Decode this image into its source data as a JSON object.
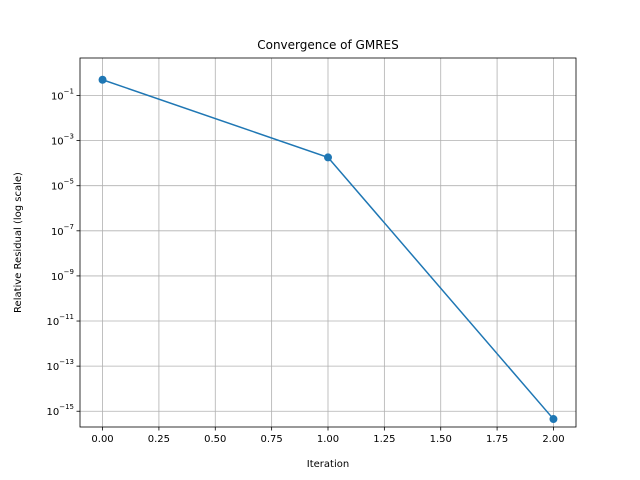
{
  "chart_data": {
    "type": "line",
    "title": "Convergence of GMRES",
    "xlabel": "Iteration",
    "ylabel": "Relative Residual (log scale)",
    "yscale": "log",
    "grid": true,
    "x": [
      0,
      1,
      2
    ],
    "series": [
      {
        "values": [
          0.5,
          0.00018,
          4.5e-16
        ],
        "color": "#1f77b4",
        "marker": "circle"
      }
    ],
    "xlim": [
      -0.1,
      2.1
    ],
    "ylim": [
      2e-16,
      4.6
    ],
    "xticks": [
      0.0,
      0.25,
      0.5,
      0.75,
      1.0,
      1.25,
      1.5,
      1.75,
      2.0
    ],
    "xtick_labels": [
      "0.00",
      "0.25",
      "0.50",
      "0.75",
      "1.00",
      "1.25",
      "1.50",
      "1.75",
      "2.00"
    ],
    "yticks": [
      0.1,
      0.001,
      1e-05,
      1e-07,
      1e-09,
      1e-11,
      1e-13,
      1e-15
    ],
    "ytick_labels": [
      {
        "base": "10",
        "exp": "−1"
      },
      {
        "base": "10",
        "exp": "−3"
      },
      {
        "base": "10",
        "exp": "−5"
      },
      {
        "base": "10",
        "exp": "−7"
      },
      {
        "base": "10",
        "exp": "−9"
      },
      {
        "base": "10",
        "exp": "−11"
      },
      {
        "base": "10",
        "exp": "−13"
      },
      {
        "base": "10",
        "exp": "−15"
      }
    ]
  }
}
